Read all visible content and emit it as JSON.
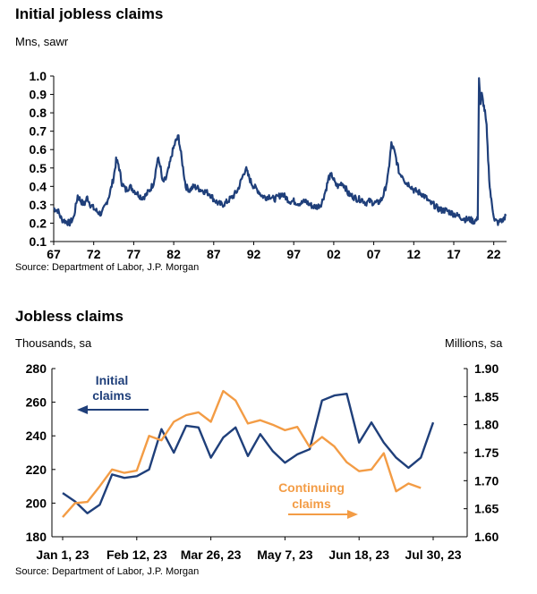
{
  "chart_data": [
    {
      "type": "line",
      "title": "Initial jobless claims",
      "subtitle": "Mns, sawr",
      "source": "Source: Department of Labor, J.P. Morgan",
      "ylim": [
        0.1,
        1.0
      ],
      "yticks": [
        0.1,
        0.2,
        0.3,
        0.4,
        0.5,
        0.6,
        0.7,
        0.8,
        0.9,
        1.0
      ],
      "ytick_labels": [
        "0.1",
        "0.2",
        "0.3",
        "0.4",
        "0.5",
        "0.6",
        "0.7",
        "0.8",
        "0.9",
        "1.0"
      ],
      "xlim": [
        1967,
        2023.6
      ],
      "xticks": [
        1967,
        1972,
        1977,
        1982,
        1987,
        1992,
        1997,
        2002,
        2007,
        2012,
        2017,
        2022
      ],
      "xtick_labels": [
        "67",
        "72",
        "77",
        "82",
        "87",
        "92",
        "97",
        "02",
        "07",
        "12",
        "17",
        "22"
      ],
      "grid": false,
      "series": [
        {
          "color": "#1f3f7a",
          "x": [
            1967.0,
            1967.5,
            1968.0,
            1968.5,
            1969.0,
            1969.5,
            1970.0,
            1970.4,
            1970.8,
            1971.2,
            1971.6,
            1972.0,
            1972.5,
            1973.0,
            1973.5,
            1974.0,
            1974.5,
            1974.8,
            1975.1,
            1975.5,
            1976.0,
            1976.5,
            1977.0,
            1977.5,
            1978.0,
            1978.5,
            1979.0,
            1979.5,
            1980.0,
            1980.3,
            1980.6,
            1981.0,
            1981.4,
            1981.8,
            1982.2,
            1982.6,
            1983.0,
            1983.5,
            1984.0,
            1984.5,
            1985.0,
            1985.5,
            1986.0,
            1986.5,
            1987.0,
            1987.5,
            1988.0,
            1988.5,
            1989.0,
            1989.5,
            1990.0,
            1990.5,
            1991.0,
            1991.3,
            1991.7,
            1992.0,
            1992.5,
            1993.0,
            1993.5,
            1994.0,
            1994.5,
            1995.0,
            1995.5,
            1996.0,
            1996.5,
            1997.0,
            1997.5,
            1998.0,
            1998.5,
            1999.0,
            1999.5,
            2000.0,
            2000.5,
            2001.0,
            2001.4,
            2001.8,
            2002.2,
            2002.6,
            2003.0,
            2003.4,
            2003.8,
            2004.2,
            2004.6,
            2005.0,
            2005.5,
            2006.0,
            2006.5,
            2007.0,
            2007.5,
            2008.0,
            2008.4,
            2008.8,
            2009.0,
            2009.2,
            2009.5,
            2009.8,
            2010.2,
            2010.6,
            2011.0,
            2011.5,
            2012.0,
            2012.5,
            2013.0,
            2013.5,
            2014.0,
            2014.5,
            2015.0,
            2015.5,
            2016.0,
            2016.5,
            2017.0,
            2017.5,
            2018.0,
            2018.5,
            2019.0,
            2019.5,
            2020.0,
            2020.15,
            2020.22,
            2020.35,
            2020.5,
            2020.7,
            2020.9,
            2021.1,
            2021.3,
            2021.5,
            2021.7,
            2021.9,
            2022.1,
            2022.3,
            2022.6,
            2022.9,
            2023.1,
            2023.3,
            2023.5
          ],
          "values": [
            0.28,
            0.27,
            0.22,
            0.21,
            0.2,
            0.23,
            0.35,
            0.32,
            0.3,
            0.34,
            0.3,
            0.28,
            0.26,
            0.25,
            0.3,
            0.36,
            0.45,
            0.54,
            0.52,
            0.42,
            0.38,
            0.4,
            0.38,
            0.36,
            0.34,
            0.35,
            0.38,
            0.42,
            0.55,
            0.52,
            0.42,
            0.44,
            0.5,
            0.58,
            0.64,
            0.67,
            0.55,
            0.4,
            0.38,
            0.4,
            0.39,
            0.38,
            0.37,
            0.36,
            0.33,
            0.31,
            0.3,
            0.31,
            0.33,
            0.35,
            0.38,
            0.44,
            0.5,
            0.46,
            0.42,
            0.4,
            0.38,
            0.35,
            0.34,
            0.35,
            0.33,
            0.34,
            0.36,
            0.34,
            0.32,
            0.32,
            0.31,
            0.31,
            0.32,
            0.3,
            0.29,
            0.29,
            0.31,
            0.38,
            0.45,
            0.46,
            0.41,
            0.4,
            0.42,
            0.4,
            0.36,
            0.35,
            0.34,
            0.33,
            0.33,
            0.31,
            0.32,
            0.31,
            0.31,
            0.33,
            0.38,
            0.46,
            0.55,
            0.63,
            0.6,
            0.55,
            0.47,
            0.46,
            0.42,
            0.41,
            0.38,
            0.37,
            0.36,
            0.34,
            0.31,
            0.3,
            0.28,
            0.27,
            0.27,
            0.26,
            0.25,
            0.24,
            0.23,
            0.22,
            0.22,
            0.21,
            0.22,
            1.0,
            0.95,
            0.85,
            0.9,
            0.85,
            0.8,
            0.72,
            0.55,
            0.4,
            0.32,
            0.27,
            0.22,
            0.21,
            0.2,
            0.22,
            0.21,
            0.23,
            0.24
          ]
        }
      ]
    },
    {
      "type": "line",
      "title": "Jobless claims",
      "subtitle_left": "Thousands, sa",
      "subtitle_right": "Millions, sa",
      "source": "Source: Department of Labor, J.P. Morgan",
      "categories": [
        "Jan 1, 23",
        "Jan 8, 23",
        "Jan 15, 23",
        "Jan 22, 23",
        "Jan 29, 23",
        "Feb 5, 23",
        "Feb 12, 23",
        "Feb 19, 23",
        "Feb 26, 23",
        "Mar 5, 23",
        "Mar 12, 23",
        "Mar 19, 23",
        "Mar 26, 23",
        "Apr 2, 23",
        "Apr 9, 23",
        "Apr 16, 23",
        "Apr 23, 23",
        "Apr 30, 23",
        "May 7, 23",
        "May 14, 23",
        "May 21, 23",
        "May 28, 23",
        "Jun 4, 23",
        "Jun 11, 23",
        "Jun 18, 23",
        "Jun 25, 23",
        "Jul 2, 23",
        "Jul 9, 23",
        "Jul 16, 23",
        "Jul 23, 23",
        "Jul 30, 23",
        "Aug 6, 23"
      ],
      "xtick_labels": [
        "Jan 1, 23",
        "Feb 12, 23",
        "Mar 26, 23",
        "May 7, 23",
        "Jun 18, 23",
        "Jul 30, 23"
      ],
      "xtick_indices": [
        0,
        6,
        12,
        18,
        24,
        30
      ],
      "y_left": {
        "ylim": [
          180,
          280
        ],
        "ticks": [
          180,
          200,
          220,
          240,
          260,
          280
        ],
        "tick_labels": [
          "180",
          "200",
          "220",
          "240",
          "260",
          "280"
        ]
      },
      "y_right": {
        "ylim": [
          1.6,
          1.9
        ],
        "ticks": [
          1.6,
          1.65,
          1.7,
          1.75,
          1.8,
          1.85,
          1.9
        ],
        "tick_labels": [
          "1.60",
          "1.65",
          "1.70",
          "1.75",
          "1.80",
          "1.85",
          "1.90"
        ]
      },
      "grid": false,
      "series": [
        {
          "name": "Initial claims",
          "axis": "left",
          "color": "#1f3f7a",
          "values": [
            206,
            201,
            194,
            199,
            217,
            215,
            216,
            220,
            244,
            230,
            246,
            245,
            227,
            239,
            245,
            228,
            241,
            231,
            224,
            229,
            232,
            261,
            264,
            265,
            236,
            248,
            236,
            227,
            221,
            227,
            248,
            null
          ]
        },
        {
          "name": "Continuing claims",
          "axis": "right",
          "color": "#f39c45",
          "values": [
            1.635,
            1.66,
            1.662,
            1.69,
            1.72,
            1.714,
            1.718,
            1.78,
            1.772,
            1.805,
            1.817,
            1.822,
            1.805,
            1.86,
            1.843,
            1.802,
            1.808,
            1.8,
            1.79,
            1.796,
            1.76,
            1.778,
            1.761,
            1.733,
            1.717,
            1.72,
            1.749,
            1.681,
            1.695,
            1.687,
            null,
            null
          ]
        }
      ],
      "annotations": [
        {
          "text": "Initial\nclaims",
          "color": "#1f3f7a",
          "arrow": "left"
        },
        {
          "text": "Continuing\nclaims",
          "color": "#f39c45",
          "arrow": "right"
        }
      ]
    }
  ]
}
